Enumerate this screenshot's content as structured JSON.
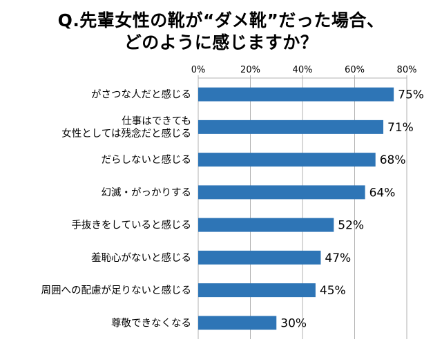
{
  "chart_data": {
    "type": "bar",
    "orientation": "horizontal",
    "title_lines": [
      "Q.先輩女性の靴が“ダメ靴”だった場合、",
      "どのように感じますか？"
    ],
    "categories": [
      [
        "がさつな人だと感じる"
      ],
      [
        "仕事はできても",
        "女性としては残念だと感じる"
      ],
      [
        "だらしないと感じる"
      ],
      [
        "幻滅・がっかりする"
      ],
      [
        "手抜きをしていると感じる"
      ],
      [
        "羞恥心がないと感じる"
      ],
      [
        "周囲への配慮が足りないと感じる"
      ],
      [
        "尊敬できなくなる"
      ]
    ],
    "values": [
      75,
      71,
      68,
      64,
      52,
      47,
      45,
      30
    ],
    "value_labels": [
      "75%",
      "71%",
      "68%",
      "64%",
      "52%",
      "47%",
      "45%",
      "30%"
    ],
    "xlim": [
      0,
      80
    ],
    "x_ticks": [
      0,
      20,
      40,
      60,
      80
    ],
    "x_tick_labels": [
      "0%",
      "20%",
      "40%",
      "60%",
      "80%"
    ],
    "axis_position": "top",
    "grid": true,
    "bar_color": "#2e75b6",
    "grid_color": "#b0b0b0"
  }
}
